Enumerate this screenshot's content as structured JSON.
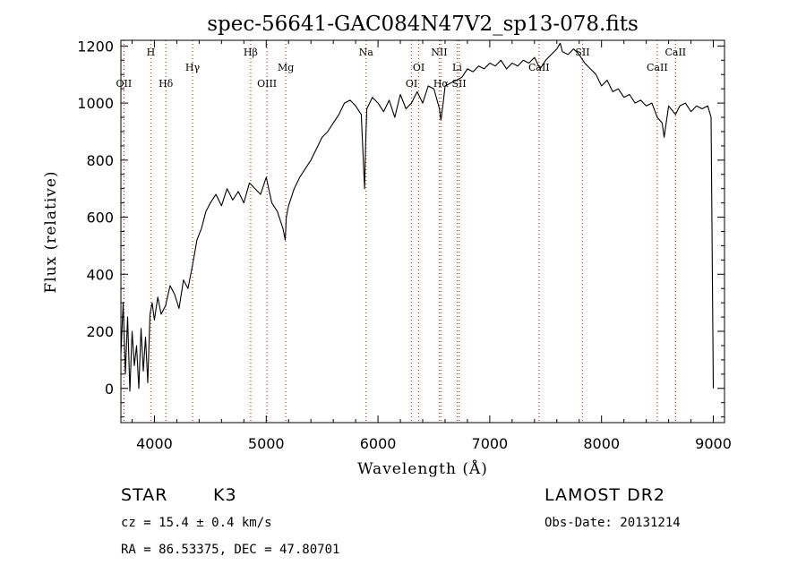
{
  "chart_data": {
    "type": "line",
    "title": "spec-56641-GAC084N47V2_sp13-078.fits",
    "xlabel": "Wavelength (Å)",
    "ylabel": "Flux (relative)",
    "xlim": [
      3700,
      9100
    ],
    "ylim": [
      -120,
      1220
    ],
    "x_ticks": [
      4000,
      5000,
      6000,
      7000,
      8000,
      9000
    ],
    "y_ticks": [
      0,
      200,
      400,
      600,
      800,
      1000,
      1200
    ],
    "series": [
      {
        "name": "flux",
        "x": [
          3700,
          3720,
          3740,
          3760,
          3780,
          3800,
          3820,
          3840,
          3860,
          3880,
          3900,
          3920,
          3940,
          3960,
          3980,
          4000,
          4030,
          4060,
          4100,
          4140,
          4180,
          4220,
          4260,
          4300,
          4340,
          4380,
          4420,
          4460,
          4500,
          4550,
          4600,
          4650,
          4700,
          4750,
          4800,
          4850,
          4900,
          4950,
          5000,
          5050,
          5100,
          5150,
          5170,
          5180,
          5200,
          5250,
          5300,
          5350,
          5400,
          5450,
          5500,
          5550,
          5600,
          5650,
          5700,
          5750,
          5800,
          5850,
          5880,
          5890,
          5900,
          5950,
          6000,
          6050,
          6100,
          6150,
          6200,
          6250,
          6300,
          6350,
          6400,
          6450,
          6500,
          6550,
          6563,
          6580,
          6600,
          6650,
          6700,
          6750,
          6800,
          6850,
          6900,
          6950,
          7000,
          7050,
          7100,
          7150,
          7200,
          7250,
          7300,
          7350,
          7400,
          7450,
          7500,
          7550,
          7600,
          7630,
          7650,
          7700,
          7750,
          7800,
          7850,
          7900,
          7950,
          8000,
          8050,
          8100,
          8150,
          8200,
          8250,
          8300,
          8350,
          8400,
          8450,
          8498,
          8542,
          8560,
          8600,
          8662,
          8700,
          8750,
          8800,
          8850,
          8900,
          8950,
          8980,
          9000
        ],
        "y": [
          120,
          300,
          50,
          250,
          -10,
          200,
          80,
          150,
          0,
          210,
          60,
          180,
          20,
          260,
          300,
          240,
          320,
          260,
          290,
          360,
          330,
          280,
          380,
          350,
          430,
          520,
          560,
          620,
          650,
          680,
          640,
          700,
          660,
          690,
          650,
          720,
          700,
          680,
          740,
          650,
          620,
          560,
          520,
          600,
          640,
          700,
          740,
          770,
          800,
          840,
          880,
          900,
          930,
          960,
          1000,
          1010,
          990,
          960,
          700,
          860,
          980,
          1020,
          1000,
          970,
          1010,
          950,
          1030,
          980,
          1000,
          1040,
          1000,
          1060,
          1050,
          980,
          940,
          990,
          1060,
          1070,
          1080,
          1090,
          1120,
          1110,
          1130,
          1120,
          1140,
          1130,
          1150,
          1120,
          1140,
          1130,
          1150,
          1140,
          1160,
          1120,
          1150,
          1170,
          1190,
          1210,
          1180,
          1170,
          1190,
          1170,
          1140,
          1120,
          1100,
          1060,
          1080,
          1040,
          1050,
          1020,
          1030,
          1000,
          1010,
          990,
          1000,
          950,
          930,
          880,
          990,
          960,
          990,
          1000,
          970,
          990,
          980,
          990,
          950,
          0
        ]
      }
    ],
    "spectral_lines": [
      {
        "label": "OII",
        "wavelength": 3727,
        "row": 3
      },
      {
        "label": "H",
        "wavelength": 3968,
        "row": 1
      },
      {
        "label": "Hδ",
        "wavelength": 4102,
        "row": 3
      },
      {
        "label": "Hγ",
        "wavelength": 4341,
        "row": 2
      },
      {
        "label": "Hβ",
        "wavelength": 4861,
        "row": 1
      },
      {
        "label": "OIII",
        "wavelength": 5007,
        "row": 3
      },
      {
        "label": "Mg",
        "wavelength": 5175,
        "row": 2
      },
      {
        "label": "Na",
        "wavelength": 5893,
        "row": 1
      },
      {
        "label": "OI",
        "wavelength": 6300,
        "row": 3
      },
      {
        "label": "OI",
        "wavelength": 6364,
        "row": 2
      },
      {
        "label": "NII",
        "wavelength": 6548,
        "row": 1
      },
      {
        "label": "Hα",
        "wavelength": 6563,
        "row": 3
      },
      {
        "label": "Li",
        "wavelength": 6708,
        "row": 2
      },
      {
        "label": "SII",
        "wavelength": 6725,
        "row": 3
      },
      {
        "label": "CaII",
        "wavelength": 7440,
        "row": 2
      },
      {
        "label": "SII",
        "wavelength": 7830,
        "row": 1
      },
      {
        "label": "CaII",
        "wavelength": 8498,
        "row": 2
      },
      {
        "label": "CaII",
        "wavelength": 8662,
        "row": 1
      }
    ]
  },
  "footer": {
    "object_class": "STAR",
    "subclass": "K3",
    "survey": "LAMOST DR2",
    "redshift": "cz = 15.4 ± 0.4 km/s",
    "obs_date": "Obs-Date: 20131214",
    "coords": "RA =  86.53375, DEC =  47.80701"
  },
  "colors": {
    "line": "#000000",
    "marker": "#c0392b"
  }
}
